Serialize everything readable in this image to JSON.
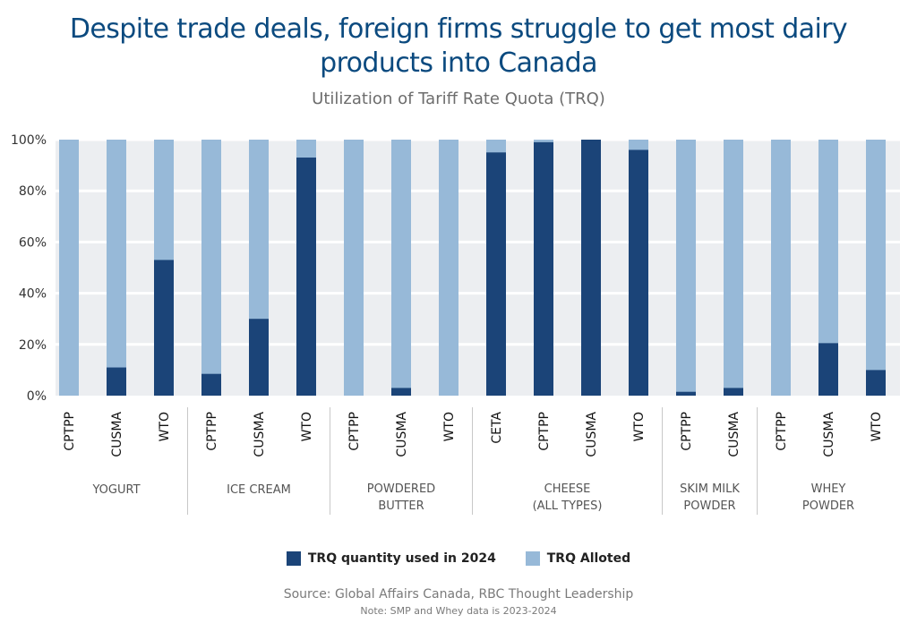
{
  "title_lines": [
    "Despite trade deals, foreign firms struggle to get most dairy",
    "products into Canada"
  ],
  "subtitle": "Utilization of Tariff Rate Quota (TRQ)",
  "legend": {
    "used_label": "TRQ quantity used in 2024",
    "alloted_label": "TRQ Alloted"
  },
  "source": "Source: Global Affairs Canada, RBC Thought Leadership",
  "note": "Note: SMP and Whey data is 2023-2024",
  "colors": {
    "used": "#1b4478",
    "alloted": "#97b9d8",
    "plot_bg": "#eceef1",
    "title": "#0b4a7f"
  },
  "chart_data": {
    "type": "bar",
    "stacked": true,
    "title": "Despite trade deals, foreign firms struggle to get most dairy products into Canada",
    "subtitle": "Utilization of Tariff Rate Quota (TRQ)",
    "ylim": [
      0,
      100
    ],
    "yticks": [
      "0%",
      "20%",
      "40%",
      "60%",
      "80%",
      "100%"
    ],
    "grid": true,
    "legend_position": "bottom",
    "groups": [
      {
        "name": [
          "YOGURT"
        ],
        "categories": [
          "CPTPP",
          "CUSMA",
          "WTO"
        ],
        "used": [
          0,
          11,
          53
        ]
      },
      {
        "name": [
          "ICE CREAM"
        ],
        "categories": [
          "CPTPP",
          "CUSMA",
          "WTO"
        ],
        "used": [
          8.5,
          30,
          93
        ]
      },
      {
        "name": [
          "POWDERED",
          "BUTTER"
        ],
        "categories": [
          "CPTPP",
          "CUSMA",
          "WTO"
        ],
        "used": [
          0,
          3,
          0
        ]
      },
      {
        "name": [
          "CHEESE",
          "(ALL TYPES)"
        ],
        "categories": [
          "CETA",
          "CPTPP",
          "CUSMA",
          "WTO"
        ],
        "used": [
          95,
          99,
          100,
          96
        ]
      },
      {
        "name": [
          "SKIM MILK",
          "POWDER"
        ],
        "categories": [
          "CPTPP",
          "CUSMA"
        ],
        "used": [
          1.5,
          3
        ]
      },
      {
        "name": [
          "WHEY",
          "POWDER"
        ],
        "categories": [
          "CPTPP",
          "CUSMA",
          "WTO"
        ],
        "used": [
          0,
          20.5,
          10
        ]
      }
    ],
    "series": [
      {
        "name": "TRQ quantity used in 2024"
      },
      {
        "name": "TRQ Alloted"
      }
    ]
  }
}
